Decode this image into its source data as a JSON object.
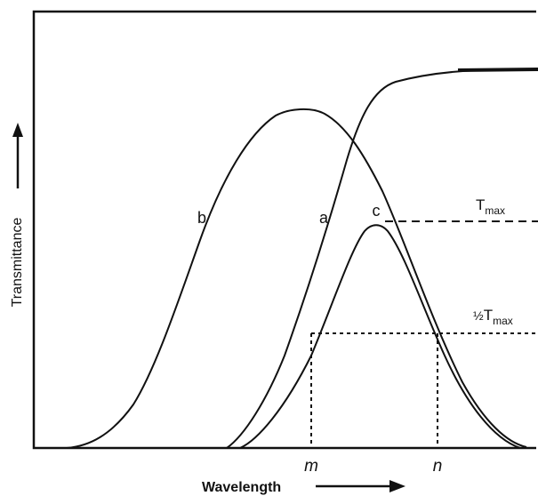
{
  "axes": {
    "x_label": "Wavelength",
    "y_label": "Transmittance"
  },
  "curves": {
    "a": "a",
    "b": "b",
    "c": "c"
  },
  "levels": {
    "t_max_base": "T",
    "t_max_sub": "max",
    "half_frac": "½",
    "half_base": "T",
    "half_sub": "max"
  },
  "markers": {
    "m": "m",
    "n": "n"
  }
}
